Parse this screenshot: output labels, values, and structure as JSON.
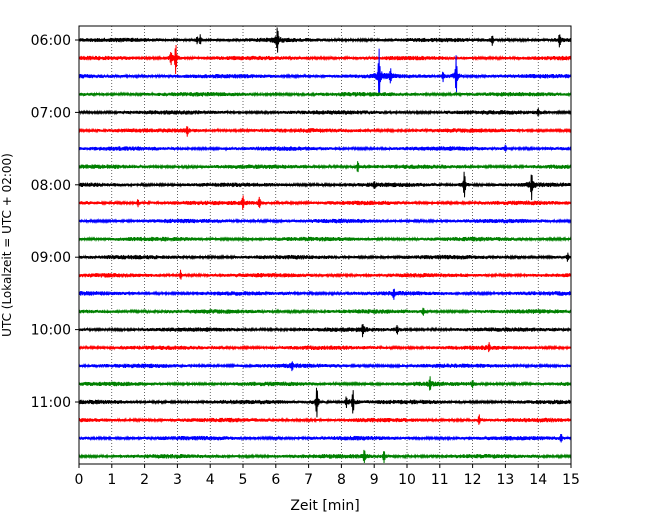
{
  "chart_data": {
    "type": "line",
    "title": "",
    "xlabel": "Zeit  [min]",
    "ylabel": "UTC (Lokalzeit = UTC + 02:00)",
    "xlim": [
      0,
      15
    ],
    "x_ticks": [
      0,
      1,
      2,
      3,
      4,
      5,
      6,
      7,
      8,
      9,
      10,
      11,
      12,
      13,
      14,
      15
    ],
    "x_tick_labels": [
      "0",
      "1",
      "2",
      "3",
      "4",
      "5",
      "6",
      "7",
      "8",
      "9",
      "10",
      "11",
      "12",
      "13",
      "14",
      "15"
    ],
    "y_tick_labels": [
      "06:00",
      "07:00",
      "08:00",
      "09:00",
      "10:00",
      "11:00"
    ],
    "grid": "vertical dotted",
    "color_cycle": [
      "#000000",
      "#ff0000",
      "#0000ff",
      "#008000"
    ],
    "series": [
      {
        "start": "06:00",
        "color": "#000000",
        "events": [
          {
            "x": 3.6,
            "a": 3
          },
          {
            "x": 3.7,
            "a": 4
          },
          {
            "x": 6.05,
            "a": 11
          },
          {
            "x": 12.6,
            "a": 4
          },
          {
            "x": 14.65,
            "a": 5
          }
        ]
      },
      {
        "start": "06:15",
        "color": "#ff0000",
        "events": [
          {
            "x": 2.95,
            "a": 14
          },
          {
            "x": 2.8,
            "a": 5
          }
        ]
      },
      {
        "start": "06:30",
        "color": "#0000ff",
        "events": [
          {
            "x": 9.15,
            "a": 22
          },
          {
            "x": 9.5,
            "a": 5
          },
          {
            "x": 11.5,
            "a": 18
          },
          {
            "x": 11.1,
            "a": 4
          }
        ]
      },
      {
        "start": "06:45",
        "color": "#008000",
        "events": []
      },
      {
        "start": "07:00",
        "color": "#000000",
        "events": [
          {
            "x": 14.0,
            "a": 3
          }
        ]
      },
      {
        "start": "07:15",
        "color": "#ff0000",
        "events": [
          {
            "x": 3.3,
            "a": 4
          }
        ]
      },
      {
        "start": "07:30",
        "color": "#0000ff",
        "events": [
          {
            "x": 13.0,
            "a": 3
          }
        ]
      },
      {
        "start": "07:45",
        "color": "#008000",
        "events": [
          {
            "x": 8.5,
            "a": 5
          }
        ]
      },
      {
        "start": "08:00",
        "color": "#000000",
        "events": [
          {
            "x": 11.75,
            "a": 12
          },
          {
            "x": 13.8,
            "a": 11
          },
          {
            "x": 9.0,
            "a": 3
          }
        ]
      },
      {
        "start": "08:15",
        "color": "#ff0000",
        "events": [
          {
            "x": 5.0,
            "a": 6
          },
          {
            "x": 5.5,
            "a": 5
          },
          {
            "x": 1.8,
            "a": 3
          }
        ]
      },
      {
        "start": "08:30",
        "color": "#0000ff",
        "events": []
      },
      {
        "start": "08:45",
        "color": "#008000",
        "events": []
      },
      {
        "start": "09:00",
        "color": "#000000",
        "events": [
          {
            "x": 14.9,
            "a": 3
          }
        ]
      },
      {
        "start": "09:15",
        "color": "#ff0000",
        "events": [
          {
            "x": 3.1,
            "a": 4
          }
        ]
      },
      {
        "start": "09:30",
        "color": "#0000ff",
        "events": [
          {
            "x": 9.6,
            "a": 4
          }
        ]
      },
      {
        "start": "09:45",
        "color": "#008000",
        "events": [
          {
            "x": 10.5,
            "a": 3
          }
        ]
      },
      {
        "start": "10:00",
        "color": "#000000",
        "events": [
          {
            "x": 8.65,
            "a": 5
          },
          {
            "x": 9.7,
            "a": 4
          }
        ]
      },
      {
        "start": "10:15",
        "color": "#ff0000",
        "events": [
          {
            "x": 12.5,
            "a": 3
          }
        ]
      },
      {
        "start": "10:30",
        "color": "#0000ff",
        "events": [
          {
            "x": 6.5,
            "a": 3
          }
        ]
      },
      {
        "start": "10:45",
        "color": "#008000",
        "events": [
          {
            "x": 10.7,
            "a": 5
          },
          {
            "x": 12.0,
            "a": 3
          }
        ]
      },
      {
        "start": "11:00",
        "color": "#000000",
        "events": [
          {
            "x": 7.25,
            "a": 15
          },
          {
            "x": 8.35,
            "a": 11
          },
          {
            "x": 8.15,
            "a": 4
          }
        ]
      },
      {
        "start": "11:15",
        "color": "#ff0000",
        "events": [
          {
            "x": 12.2,
            "a": 4
          }
        ]
      },
      {
        "start": "11:30",
        "color": "#0000ff",
        "events": [
          {
            "x": 14.7,
            "a": 3
          }
        ]
      },
      {
        "start": "11:45",
        "color": "#008000",
        "events": [
          {
            "x": 8.7,
            "a": 6
          },
          {
            "x": 9.3,
            "a": 5
          }
        ]
      }
    ]
  }
}
